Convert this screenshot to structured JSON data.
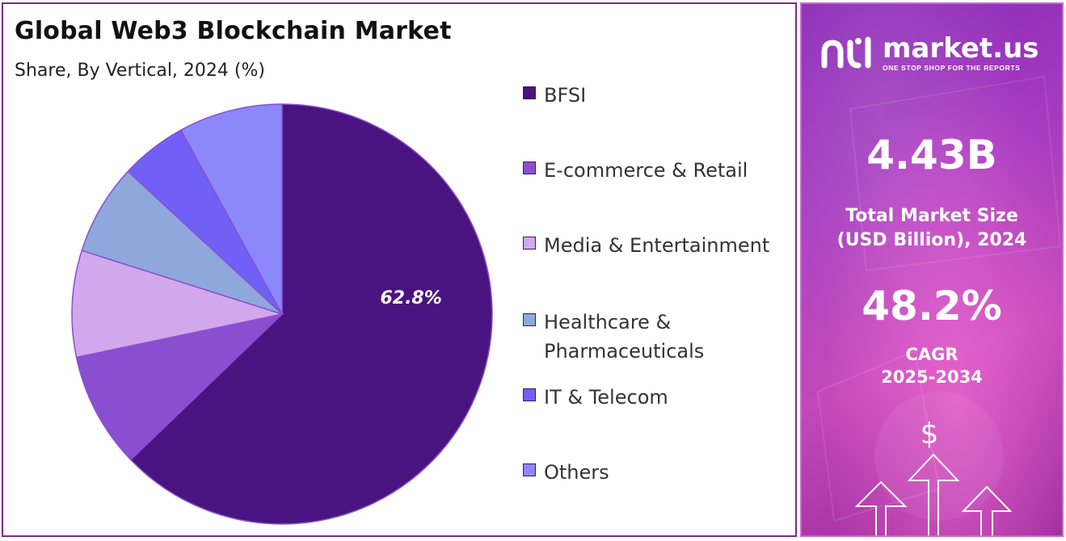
{
  "title": "Global Web3 Blockchain Market",
  "subtitle": "Share, By Vertical, 2024 (%)",
  "chart_data": {
    "type": "pie",
    "title": "Global Web3 Blockchain Market",
    "subtitle": "Share, By Vertical, 2024 (%)",
    "legend_position": "right",
    "slices": [
      {
        "name": "BFSI",
        "value": 62.8,
        "label": "62.8%",
        "color": "#4a1480"
      },
      {
        "name": "E-commerce & Retail",
        "value": 8.9,
        "color": "#8a4fd0"
      },
      {
        "name": "Media & Entertainment",
        "value": 8.2,
        "color": "#d2a8ec"
      },
      {
        "name": "Healthcare & Pharmaceuticals",
        "value": 7.0,
        "color": "#8ea8dc"
      },
      {
        "name": "IT & Telecom",
        "value": 5.1,
        "color": "#7060f6"
      },
      {
        "name": "Others",
        "value": 8.0,
        "color": "#8c88fc"
      }
    ]
  },
  "legend": [
    {
      "lines": [
        "BFSI"
      ],
      "color": "#4a1480"
    },
    {
      "lines": [
        "E-commerce & Retail"
      ],
      "color": "#8a4fd0"
    },
    {
      "lines": [
        "Media & Entertainment"
      ],
      "color": "#d2a8ec"
    },
    {
      "lines": [
        "Healthcare &",
        "Pharmaceuticals"
      ],
      "color": "#8ea8dc"
    },
    {
      "lines": [
        "IT & Telecom"
      ],
      "color": "#7060f6"
    },
    {
      "lines": [
        "Others"
      ],
      "color": "#8c88fc"
    }
  ],
  "side": {
    "brand_name": "market.us",
    "brand_tagline": "ONE STOP SHOP FOR THE REPORTS",
    "market_size": "4.43B",
    "market_size_label_1": "Total Market Size",
    "market_size_label_2": "(USD Billion), 2024",
    "cagr": "48.2%",
    "cagr_label_1": "CAGR",
    "cagr_label_2": "2025-2034",
    "dollar_symbol": "$"
  }
}
